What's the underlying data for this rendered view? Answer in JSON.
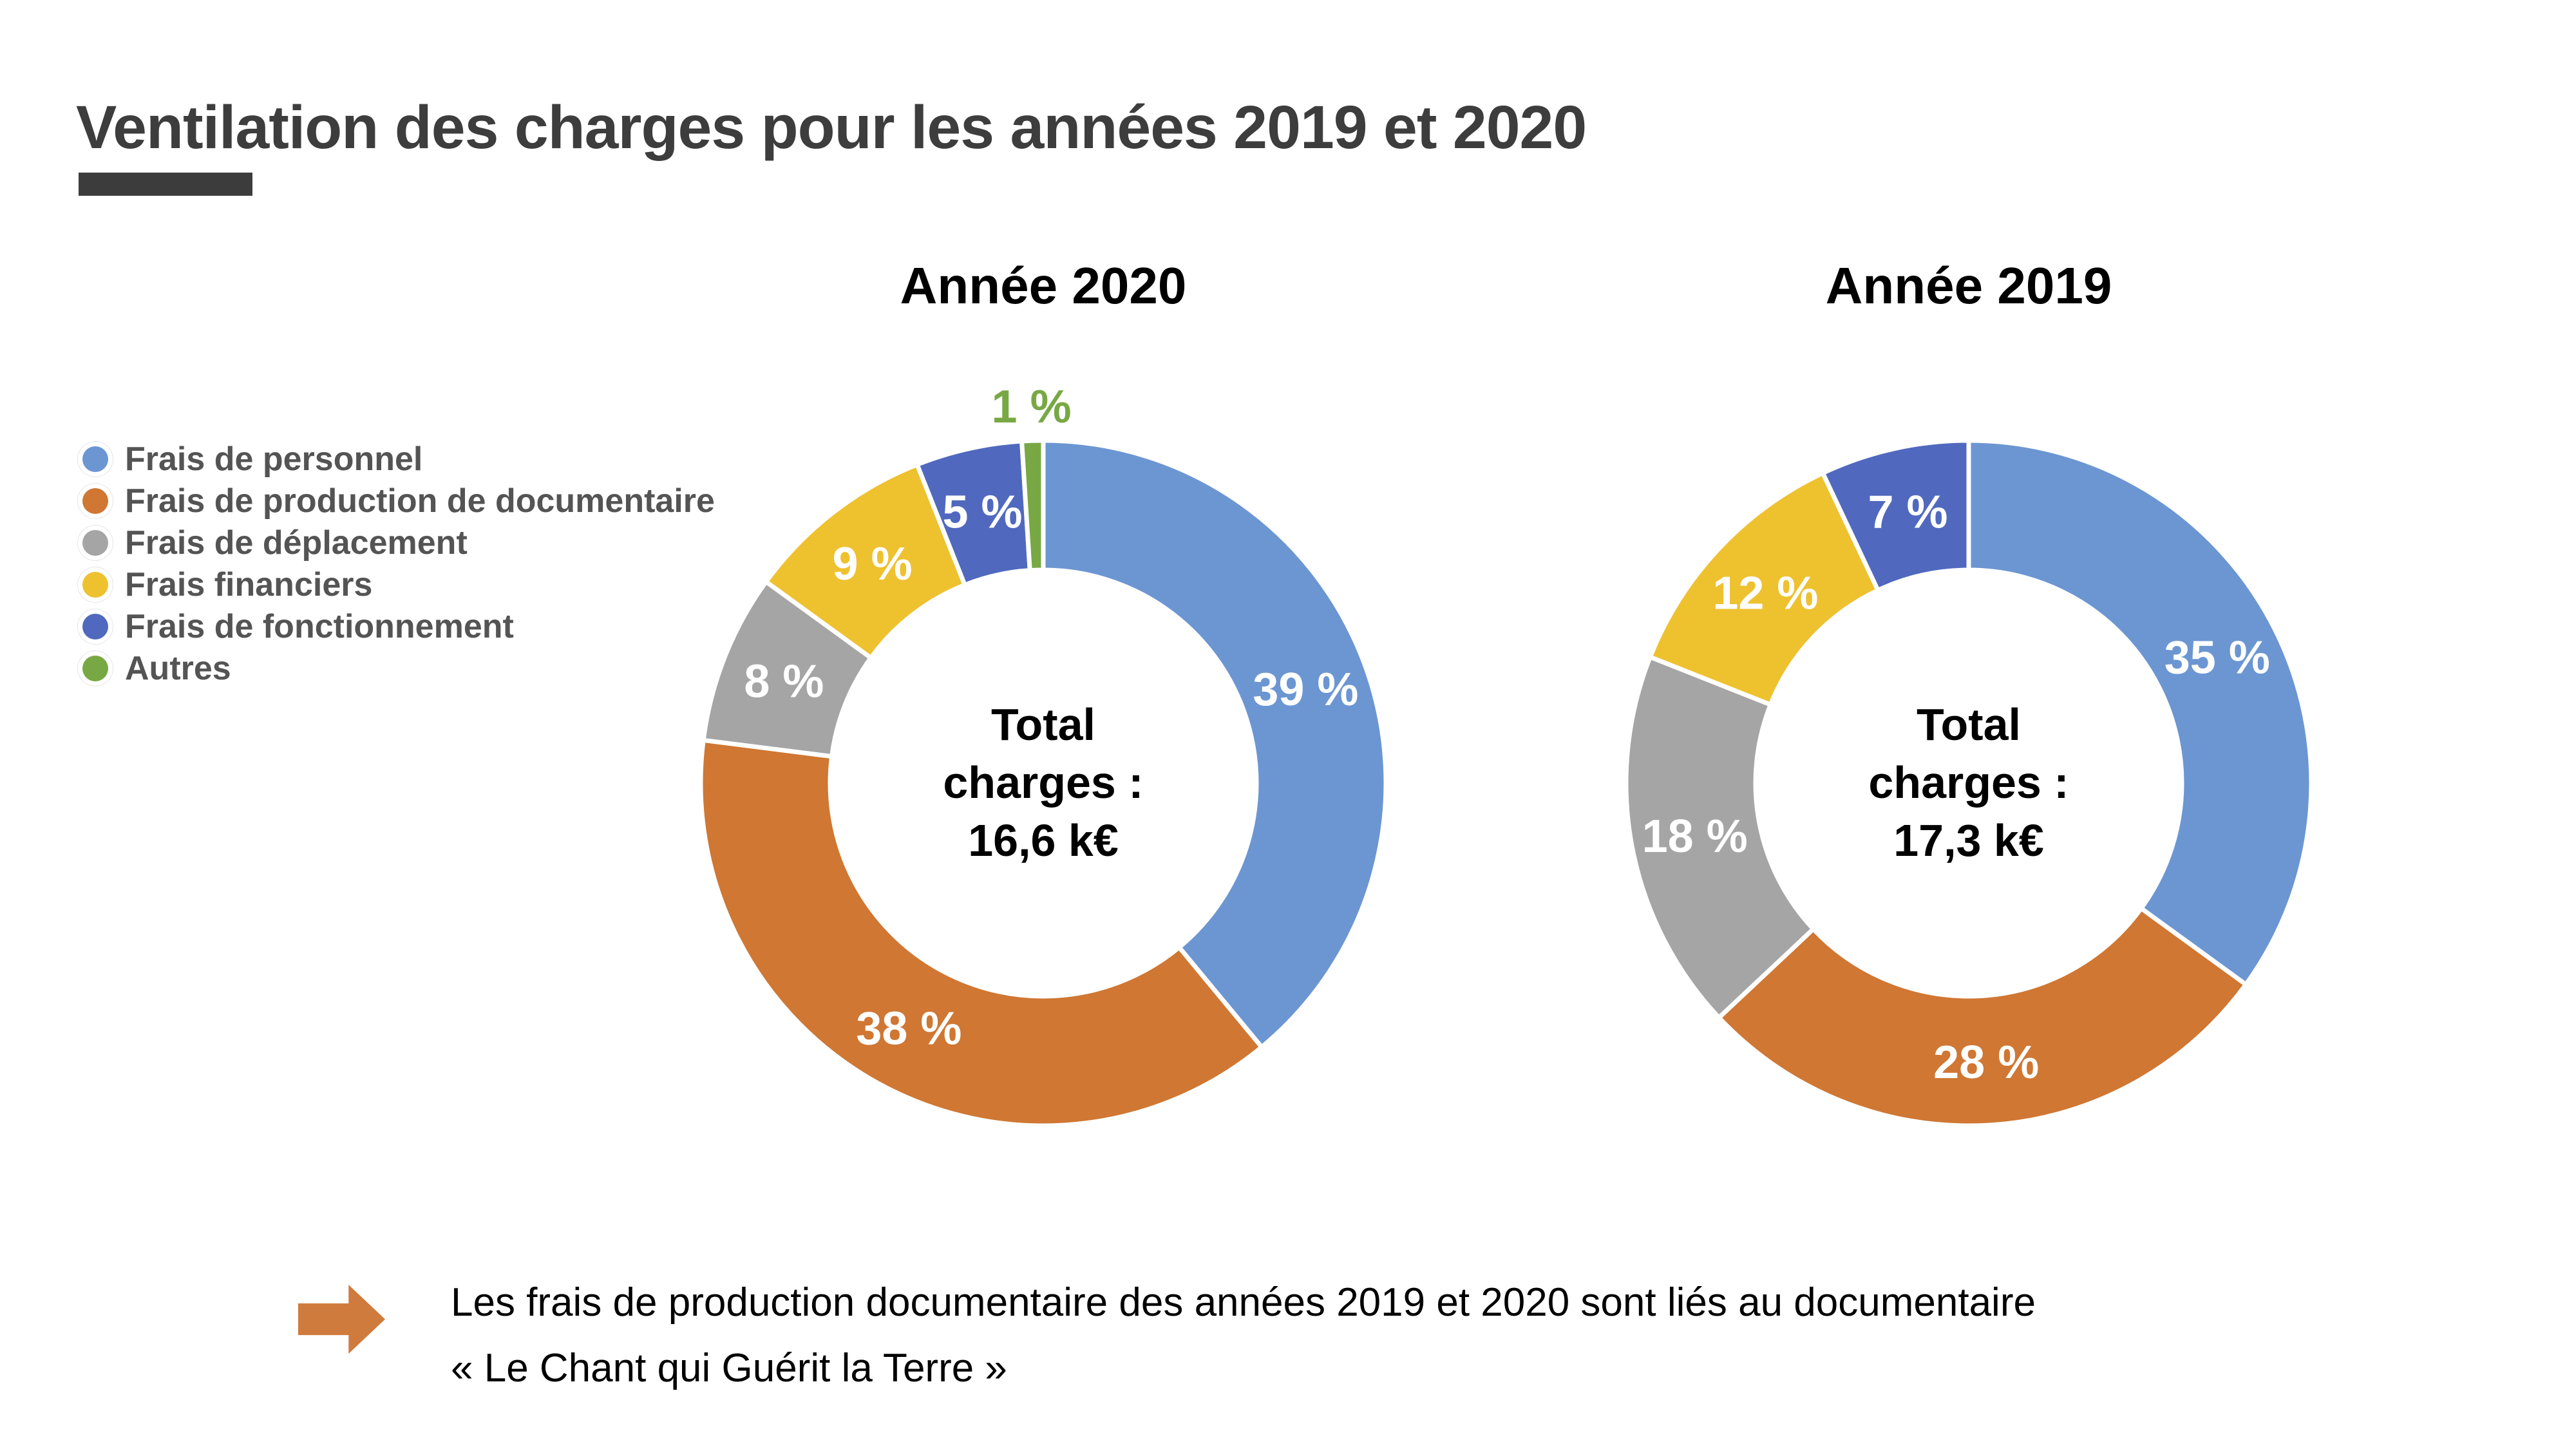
{
  "page": {
    "title": "Ventilation des charges pour les années 2019 et 2020"
  },
  "styles": {
    "title_color": "#3D3D3D",
    "underline_color": "#3C3C3C",
    "legend_text_color": "#545454",
    "slice_label_color": "#FFFFFF",
    "note_arrow_color": "#CF7B3D"
  },
  "legend": {
    "items": [
      {
        "label": "Frais de personnel",
        "color": "#6C96D2"
      },
      {
        "label": "Frais de production de documentaire",
        "color": "#CF7733"
      },
      {
        "label": "Frais de déplacement",
        "color": "#A5A5A5"
      },
      {
        "label": "Frais financiers",
        "color": "#EEC12F"
      },
      {
        "label": "Frais de fonctionnement",
        "color": "#5069BE"
      },
      {
        "label": "Autres",
        "color": "#78A844"
      }
    ]
  },
  "chart_data": [
    {
      "type": "pie",
      "subtype": "donut",
      "title": "Année 2020",
      "unit": "%",
      "direction": "clockwise",
      "start_angle_deg": 0,
      "legend_position": "left",
      "categories": [
        "Frais de personnel",
        "Frais de production de documentaire",
        "Frais de déplacement",
        "Frais financiers",
        "Frais de fonctionnement",
        "Autres"
      ],
      "values": [
        39,
        38,
        8,
        9,
        5,
        1
      ],
      "labels": [
        "39 %",
        "38 %",
        "8 %",
        "9 %",
        "5 %",
        "1 %"
      ],
      "colors": [
        "#6C96D2",
        "#CF7733",
        "#A5A5A5",
        "#EEC12F",
        "#5069BE",
        "#78A844"
      ],
      "center_lines": [
        "Total",
        "charges :",
        "16,6 k€"
      ],
      "total_label": "Total charges :",
      "total_value": "16,6 k€"
    },
    {
      "type": "pie",
      "subtype": "donut",
      "title": "Année 2019",
      "unit": "%",
      "direction": "clockwise",
      "start_angle_deg": 0,
      "legend_position": "left",
      "categories": [
        "Frais de personnel",
        "Frais de production de documentaire",
        "Frais de déplacement",
        "Frais financiers",
        "Frais de fonctionnement",
        "Autres"
      ],
      "values": [
        35,
        28,
        18,
        12,
        7,
        0
      ],
      "labels": [
        "35 %",
        "28 %",
        "18 %",
        "12 %",
        "7 %",
        ""
      ],
      "colors": [
        "#6C96D2",
        "#CF7733",
        "#A5A5A5",
        "#EEC12F",
        "#5069BE",
        "#78A844"
      ],
      "center_lines": [
        "Total",
        "charges :",
        "17,3 k€"
      ],
      "total_label": "Total charges :",
      "total_value": "17,3 k€"
    }
  ],
  "note": {
    "lines": [
      "Les frais de production documentaire des années 2019 et 2020 sont liés au documentaire",
      "« Le Chant qui Guérit la Terre »"
    ]
  }
}
